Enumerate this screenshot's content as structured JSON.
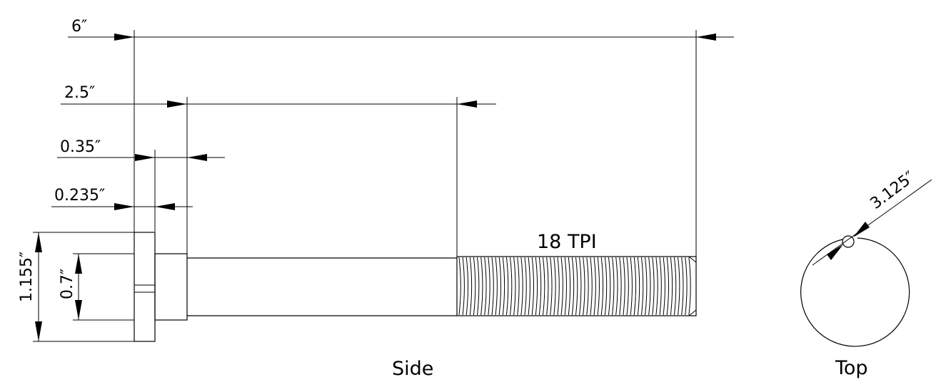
{
  "dimensions": {
    "overall_length": "6″",
    "shank_length": "2.5″",
    "head_height": "0.35″",
    "head_flange": "0.235″",
    "head_diameter": "1.155″",
    "shank_diameter": "0.7″",
    "top_diameter": "3.125″"
  },
  "thread": {
    "label": "18  TPI",
    "count": 64
  },
  "views": {
    "side": "Side",
    "top": "Top"
  }
}
